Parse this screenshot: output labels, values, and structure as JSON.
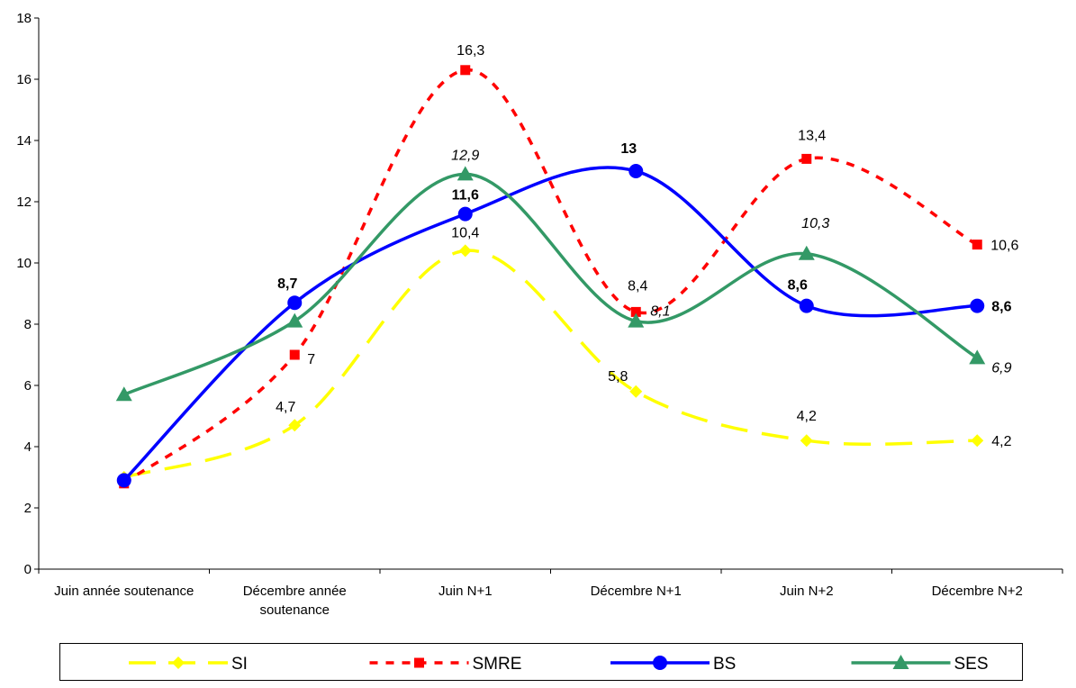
{
  "chart_data": {
    "type": "line",
    "categories": [
      [
        "Juin année soutenance"
      ],
      [
        "Décembre année",
        "soutenance"
      ],
      [
        "Juin N+1"
      ],
      [
        "Décembre N+1"
      ],
      [
        "Juin N+2"
      ],
      [
        "Décembre N+2"
      ]
    ],
    "ylim": [
      0,
      18
    ],
    "yticks": [
      "0",
      "2",
      "4",
      "6",
      "8",
      "10",
      "12",
      "14",
      "16",
      "18"
    ],
    "smooth": true,
    "legend_position": "bottom",
    "series": [
      {
        "name": "SI",
        "color": "#FFFF00",
        "line_style": "long-dash",
        "marker": "diamond",
        "values": [
          3.0,
          4.7,
          10.4,
          5.8,
          4.2,
          4.2
        ],
        "labels": [
          "",
          "4,7",
          "10,4",
          "5,8",
          "4,2",
          "4,2"
        ],
        "label_style": "normal"
      },
      {
        "name": "SMRE",
        "color": "#FF0000",
        "line_style": "short-dash",
        "marker": "square",
        "values": [
          2.8,
          7.0,
          16.3,
          8.4,
          13.4,
          10.6
        ],
        "labels": [
          "",
          "7",
          "16,3",
          "8,4",
          "13,4",
          "10,6"
        ],
        "label_style": "normal"
      },
      {
        "name": "BS",
        "color": "#0000FF",
        "line_style": "solid",
        "marker": "circle",
        "values": [
          2.9,
          8.7,
          11.6,
          13.0,
          8.6,
          8.6
        ],
        "labels": [
          "",
          "8,7",
          "11,6",
          "13",
          "8,6",
          "8,6"
        ],
        "label_style": "bold"
      },
      {
        "name": "SES",
        "color": "#339966",
        "line_style": "solid",
        "marker": "triangle",
        "values": [
          5.7,
          8.1,
          12.9,
          8.1,
          10.3,
          6.9
        ],
        "labels": [
          "",
          "",
          "12,9",
          "8,1",
          "10,3",
          "6,9"
        ],
        "label_style": "italic"
      }
    ]
  }
}
